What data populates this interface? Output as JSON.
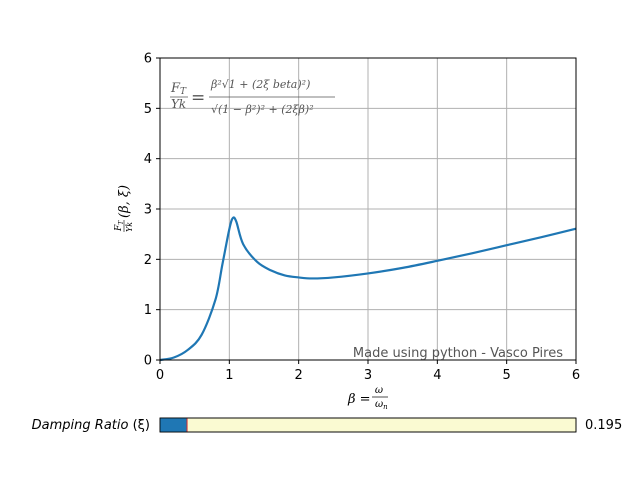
{
  "chart_data": {
    "type": "line",
    "title": "",
    "xlim": [
      0,
      6
    ],
    "ylim": [
      0,
      6
    ],
    "x_ticks": [
      "0",
      "1",
      "2",
      "3",
      "4",
      "5",
      "6"
    ],
    "y_ticks": [
      "0",
      "1",
      "2",
      "3",
      "4",
      "5",
      "6"
    ],
    "grid": true,
    "series": [
      {
        "color": "#1f77b4",
        "x": [
          0,
          0.2,
          0.4,
          0.6,
          0.8,
          0.9,
          1.0,
          1.05,
          1.1,
          1.2,
          1.4,
          1.6,
          1.8,
          2.0,
          2.2,
          2.5,
          3.0,
          3.5,
          4.0,
          4.5,
          5.0,
          5.5,
          6.0
        ],
        "y": [
          0,
          0.05,
          0.2,
          0.5,
          1.2,
          1.9,
          2.6,
          2.82,
          2.75,
          2.3,
          1.95,
          1.78,
          1.68,
          1.64,
          1.62,
          1.64,
          1.72,
          1.83,
          1.97,
          2.12,
          2.28,
          2.44,
          2.61
        ]
      }
    ],
    "xlabel": {
      "prefix": "β =",
      "num": "ω",
      "den": "ω",
      "den_sub": "n"
    },
    "ylabel": {
      "num": "F",
      "num_sub": "T",
      "den": "Yk",
      "tail": "(β, ξ)"
    },
    "formula": {
      "lhs_num": "F",
      "lhs_num_sub": "T",
      "lhs_den": "Yk",
      "eq": "=",
      "rhs_num": "β²√1 + (2ξ beta)²)",
      "rhs_den": "√(1 − β²)² + (2ξβ)²"
    },
    "annotation": "Made using python - Vasco Pires"
  },
  "slider": {
    "label_italic": "Damping Ratio",
    "label_symbol": "(ξ)",
    "value_text": "0.195",
    "fraction": 0.065,
    "fill_color": "#1f77b4",
    "track_color": "#fafad2",
    "handle_color": "#d62728"
  }
}
